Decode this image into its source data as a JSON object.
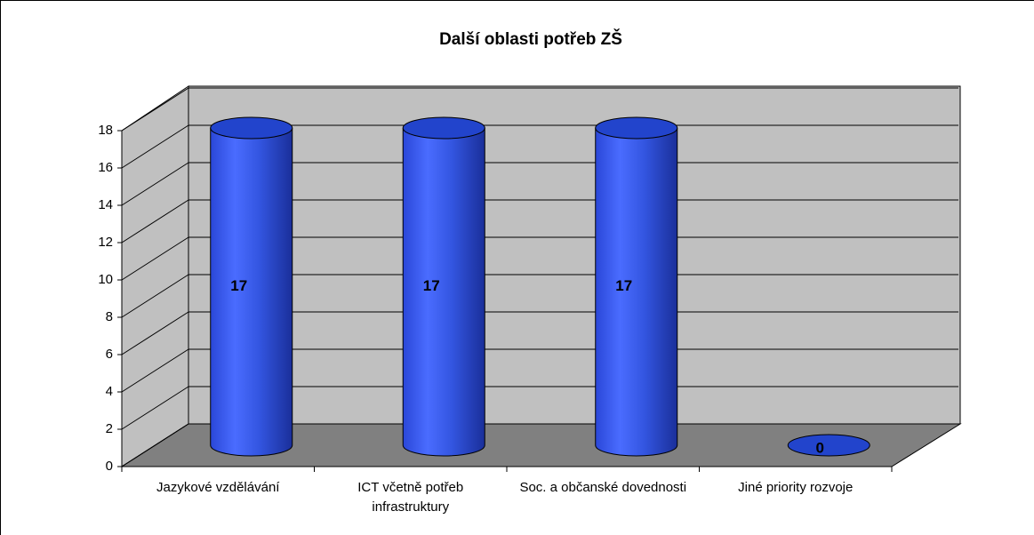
{
  "chart_data": {
    "type": "bar3d-cylinder",
    "title": "Další oblasti potřeb ZŠ",
    "categories": [
      "Jazykové vzdělávání",
      "ICT včetně potřeb infrastruktury",
      "Soc. a občanské dovednosti",
      "Jiné priority rozvoje"
    ],
    "values": [
      17,
      17,
      17,
      0
    ],
    "color": "#3355e0",
    "ylim": [
      0,
      18
    ],
    "yticks": [
      0,
      2,
      4,
      6,
      8,
      10,
      12,
      14,
      16,
      18
    ],
    "grid": true
  }
}
